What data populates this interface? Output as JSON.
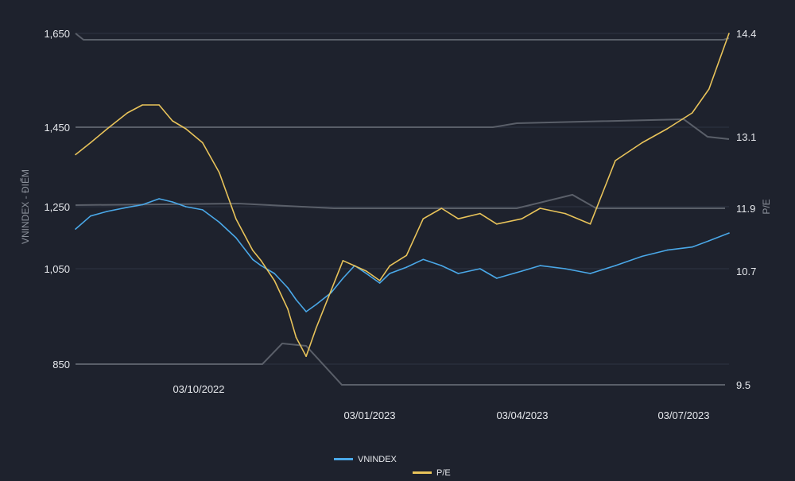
{
  "chart_data": {
    "type": "line",
    "title": "",
    "x_tick_labels": [
      "03/10/2022",
      "03/01/2023",
      "03/04/2023",
      "03/07/2023"
    ],
    "y_left": {
      "label": "VNINDEX - ĐIỂM",
      "ticks": [
        "1,650",
        "1,450",
        "1,250",
        "1,050",
        "850"
      ],
      "tick_values": [
        1650,
        1450,
        1250,
        1050,
        850
      ]
    },
    "y_right": {
      "label": "P/E",
      "ticks": [
        "14.4",
        "13.1",
        "11.9",
        "10.7",
        "9.5"
      ]
    },
    "legend": [
      {
        "name": "VNINDEX",
        "color": "#4aa8e8"
      },
      {
        "name": "P/E",
        "color": "#e8c35a"
      }
    ],
    "series": [
      {
        "name": "VNINDEX",
        "color": "#4aa8e8",
        "points": [
          [
            "2022-07-01",
            1178
          ],
          [
            "2022-07-10",
            1220
          ],
          [
            "2022-07-20",
            1235
          ],
          [
            "2022-08-01",
            1248
          ],
          [
            "2022-08-10",
            1255
          ],
          [
            "2022-08-20",
            1270
          ],
          [
            "2022-08-28",
            1262
          ],
          [
            "2022-09-05",
            1250
          ],
          [
            "2022-09-15",
            1240
          ],
          [
            "2022-09-25",
            1200
          ],
          [
            "2022-10-05",
            1150
          ],
          [
            "2022-10-15",
            1080
          ],
          [
            "2022-10-20",
            1060
          ],
          [
            "2022-10-28",
            1040
          ],
          [
            "2022-11-05",
            1010
          ],
          [
            "2022-11-10",
            985
          ],
          [
            "2022-11-16",
            960
          ],
          [
            "2022-11-22",
            975
          ],
          [
            "2022-12-01",
            1000
          ],
          [
            "2022-12-08",
            1030
          ],
          [
            "2022-12-15",
            1060
          ],
          [
            "2022-12-22",
            1040
          ],
          [
            "2022-12-30",
            1020
          ],
          [
            "2023-01-05",
            1040
          ],
          [
            "2023-01-15",
            1055
          ],
          [
            "2023-01-25",
            1080
          ],
          [
            "2023-02-05",
            1060
          ],
          [
            "2023-02-15",
            1040
          ],
          [
            "2023-02-28",
            1050
          ],
          [
            "2023-03-10",
            1030
          ],
          [
            "2023-03-25",
            1045
          ],
          [
            "2023-04-05",
            1060
          ],
          [
            "2023-04-20",
            1050
          ],
          [
            "2023-05-05",
            1040
          ],
          [
            "2023-05-20",
            1060
          ],
          [
            "2023-06-05",
            1090
          ],
          [
            "2023-06-20",
            1110
          ],
          [
            "2023-07-05",
            1120
          ],
          [
            "2023-07-15",
            1140
          ],
          [
            "2023-07-27",
            1165
          ]
        ]
      },
      {
        "name": "P/E",
        "color": "#e8c35a",
        "points": [
          [
            "2022-07-01",
            12.8
          ],
          [
            "2022-07-10",
            13.0
          ],
          [
            "2022-07-20",
            13.2
          ],
          [
            "2022-08-01",
            13.4
          ],
          [
            "2022-08-10",
            13.5
          ],
          [
            "2022-08-20",
            13.5
          ],
          [
            "2022-08-28",
            13.3
          ],
          [
            "2022-09-05",
            13.2
          ],
          [
            "2022-09-15",
            13.0
          ],
          [
            "2022-09-25",
            12.5
          ],
          [
            "2022-10-05",
            11.7
          ],
          [
            "2022-10-15",
            11.1
          ],
          [
            "2022-10-20",
            10.9
          ],
          [
            "2022-10-28",
            10.6
          ],
          [
            "2022-11-05",
            10.3
          ],
          [
            "2022-11-10",
            10.0
          ],
          [
            "2022-11-16",
            9.8
          ],
          [
            "2022-11-22",
            10.1
          ],
          [
            "2022-12-01",
            10.5
          ],
          [
            "2022-12-08",
            10.9
          ],
          [
            "2022-12-15",
            10.8
          ],
          [
            "2022-12-22",
            10.7
          ],
          [
            "2022-12-30",
            10.6
          ],
          [
            "2023-01-05",
            10.8
          ],
          [
            "2023-01-15",
            11.0
          ],
          [
            "2023-01-25",
            11.7
          ],
          [
            "2023-02-05",
            11.9
          ],
          [
            "2023-02-15",
            11.7
          ],
          [
            "2023-02-28",
            11.8
          ],
          [
            "2023-03-10",
            11.6
          ],
          [
            "2023-03-25",
            11.7
          ],
          [
            "2023-04-05",
            11.9
          ],
          [
            "2023-04-20",
            11.8
          ],
          [
            "2023-05-05",
            11.6
          ],
          [
            "2023-05-20",
            12.7
          ],
          [
            "2023-06-05",
            13.0
          ],
          [
            "2023-06-20",
            13.2
          ],
          [
            "2023-07-05",
            13.4
          ],
          [
            "2023-07-15",
            13.7
          ],
          [
            "2023-07-27",
            14.4
          ]
        ]
      }
    ],
    "grid": true,
    "legend_position": "bottom"
  }
}
